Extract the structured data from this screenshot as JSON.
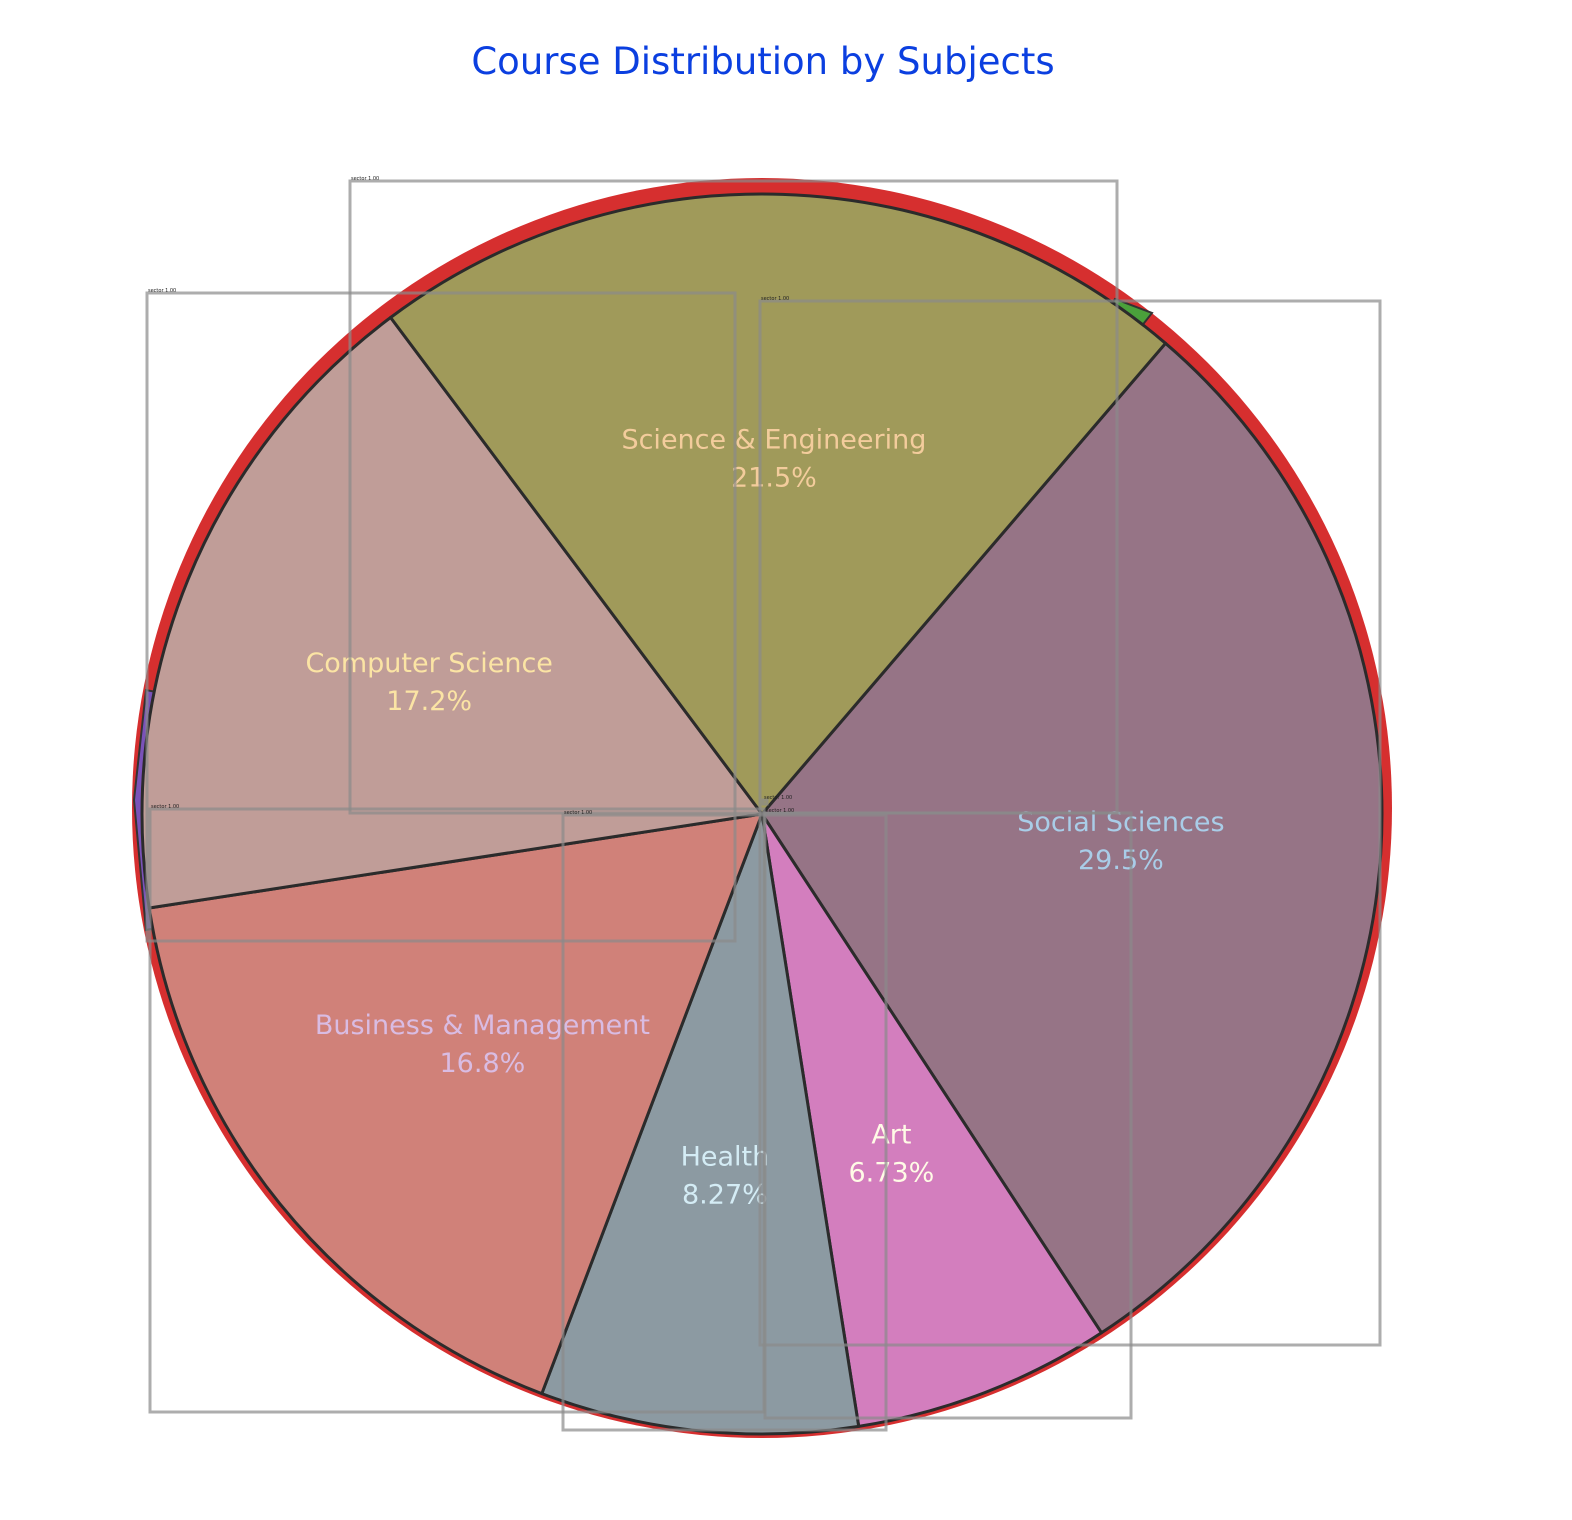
{
  "chart_data": {
    "type": "pie",
    "title": "Course Distribution by Subjects",
    "slices": [
      {
        "name": "Social Sciences",
        "value": 29.5,
        "pct": "29.5%",
        "color": "#967486",
        "labelColor": "#a9cde8"
      },
      {
        "name": "Art",
        "value": 6.73,
        "pct": "6.73%",
        "color": "#d37ebe",
        "labelColor": "#fffbe6"
      },
      {
        "name": "Health",
        "value": 8.27,
        "pct": "8.27%",
        "color": "#8c9aa2",
        "labelColor": "#d4ecf5"
      },
      {
        "name": "Business & Management",
        "value": 16.8,
        "pct": "16.8%",
        "color": "#d08179",
        "labelColor": "#d9bce3"
      },
      {
        "name": "Computer Science",
        "value": 17.2,
        "pct": "17.2%",
        "color": "#c09d98",
        "labelColor": "#fbe4a4"
      },
      {
        "name": "Science & Engineering",
        "value": 21.5,
        "pct": "21.5%",
        "color": "#a09a5a",
        "labelColor": "#f3cc9c"
      }
    ],
    "detection_tags": [
      "sector 1.00",
      "sector 1.00",
      "sector 1.00",
      "sector 1.00",
      "sector 1.00",
      "sector 1.00",
      "sector 1.00"
    ]
  }
}
